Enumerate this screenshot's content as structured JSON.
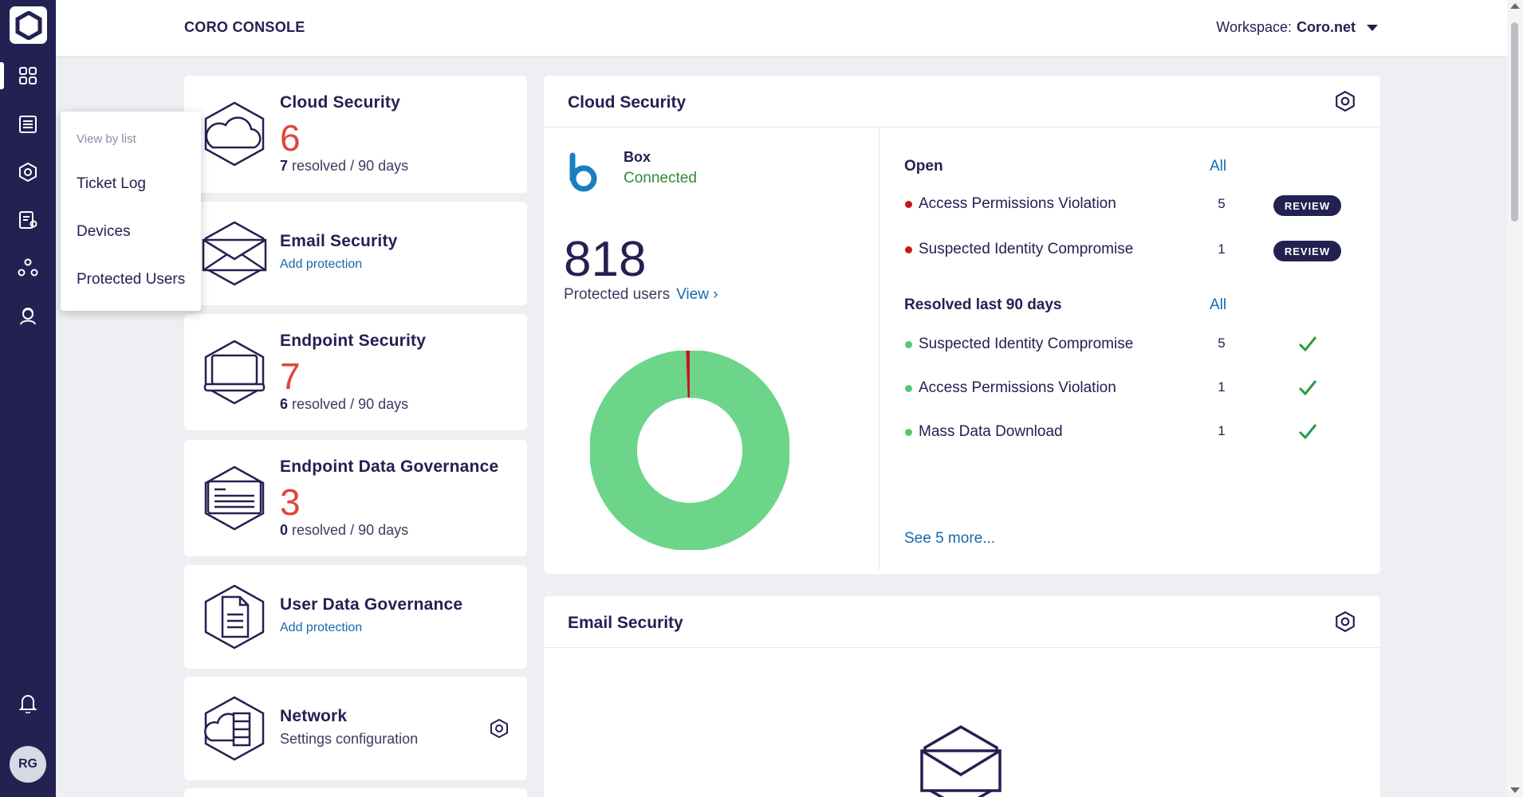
{
  "header": {
    "app_title": "CORO CONSOLE",
    "workspace_label": "Workspace:",
    "workspace_name": "Coro.net"
  },
  "sidebar": {
    "avatar_initials": "RG",
    "items": [
      "dashboard-icon",
      "list-icon",
      "gear-hex-icon",
      "settings-doc-icon",
      "network-icon",
      "support-icon"
    ]
  },
  "menu": {
    "header": "View by list",
    "items": [
      "Ticket Log",
      "Devices",
      "Protected Users"
    ]
  },
  "widgets": {
    "cloud": {
      "title": "Cloud Security",
      "count": "6",
      "resolved": "7",
      "resolved_suffix": "resolved / 90 days"
    },
    "email": {
      "title": "Email Security",
      "link": "Add protection"
    },
    "endpoint": {
      "title": "Endpoint Security",
      "count": "7",
      "resolved": "6",
      "resolved_suffix": "resolved / 90 days"
    },
    "edg": {
      "title": "Endpoint Data Governance",
      "count": "3",
      "resolved": "0",
      "resolved_suffix": "resolved / 90 days"
    },
    "udg": {
      "title": "User Data Governance",
      "link": "Add protection"
    },
    "network": {
      "title": "Network",
      "sub": "Settings configuration"
    }
  },
  "cloud_panel": {
    "title": "Cloud Security",
    "service_name": "Box",
    "service_status": "Connected",
    "protected_count": "818",
    "protected_label": "Protected users",
    "view_link": "View ›",
    "open_label": "Open",
    "open_all": "All",
    "open_rows": [
      {
        "label": "Access Permissions Violation",
        "count": "5",
        "action": "REVIEW"
      },
      {
        "label": "Suspected Identity Compromise",
        "count": "1",
        "action": "REVIEW"
      }
    ],
    "resolved_label": "Resolved last 90 days",
    "resolved_all": "All",
    "resolved_rows": [
      {
        "label": "Suspected Identity Compromise",
        "count": "5"
      },
      {
        "label": "Access Permissions Violation",
        "count": "1"
      },
      {
        "label": "Mass Data Download",
        "count": "1"
      }
    ],
    "see_more": "See 5 more...",
    "donut": {
      "protected_fraction": 0.994,
      "colors": {
        "ok": "#6cd58a",
        "alert": "#c8161d"
      }
    }
  },
  "email_panel": {
    "title": "Email Security"
  },
  "colors": {
    "sidebar": "#232152",
    "accent_red": "#e0443e",
    "link_blue": "#1769aa",
    "connected_green": "#2e8b3a",
    "open_dot": "#c8161d",
    "resolved_dot": "#55c96f"
  }
}
